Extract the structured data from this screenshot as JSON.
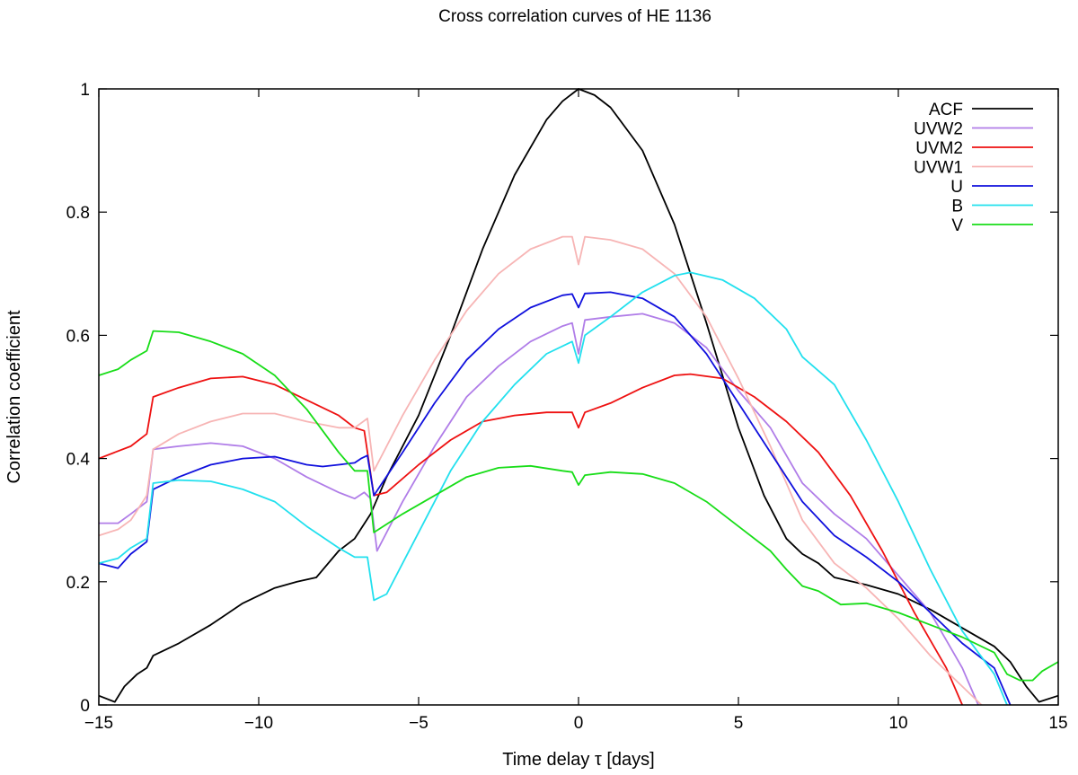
{
  "chart_data": {
    "type": "line",
    "title": "Cross correlation curves of HE 1136",
    "xlabel": "Time delay τ [days]",
    "ylabel": "Correlation coefficient",
    "xlim": [
      -15,
      15
    ],
    "ylim": [
      0,
      1
    ],
    "xticks": [
      -15,
      -10,
      -5,
      0,
      5,
      10,
      15
    ],
    "xtick_labels": [
      "−15",
      "−10",
      "−5",
      "0",
      "5",
      "10",
      "15"
    ],
    "yticks": [
      0,
      0.2,
      0.4,
      0.6,
      0.8,
      1
    ],
    "ytick_labels": [
      "0",
      "0.2",
      "0.4",
      "0.6",
      "0.8",
      "1"
    ],
    "grid": false,
    "legend_position": "top-right",
    "series": [
      {
        "name": "ACF",
        "color": "#000000",
        "points": [
          [
            -15,
            0.015
          ],
          [
            -14.5,
            0.005
          ],
          [
            -14.2,
            0.03
          ],
          [
            -13.8,
            0.05
          ],
          [
            -13.5,
            0.06
          ],
          [
            -13.3,
            0.08
          ],
          [
            -12.5,
            0.1
          ],
          [
            -11.5,
            0.13
          ],
          [
            -10.5,
            0.165
          ],
          [
            -9.5,
            0.19
          ],
          [
            -8.8,
            0.2
          ],
          [
            -8.2,
            0.207
          ],
          [
            -7.5,
            0.25
          ],
          [
            -7,
            0.27
          ],
          [
            -6.5,
            0.31
          ],
          [
            -6,
            0.37
          ],
          [
            -5,
            0.47
          ],
          [
            -4,
            0.6
          ],
          [
            -3,
            0.74
          ],
          [
            -2,
            0.86
          ],
          [
            -1,
            0.95
          ],
          [
            -0.5,
            0.98
          ],
          [
            0,
            1.0
          ],
          [
            0.5,
            0.99
          ],
          [
            1,
            0.97
          ],
          [
            2,
            0.9
          ],
          [
            3,
            0.78
          ],
          [
            4,
            0.62
          ],
          [
            5,
            0.45
          ],
          [
            5.8,
            0.34
          ],
          [
            6.5,
            0.27
          ],
          [
            7,
            0.245
          ],
          [
            7.5,
            0.23
          ],
          [
            8,
            0.207
          ],
          [
            9,
            0.195
          ],
          [
            10,
            0.18
          ],
          [
            11,
            0.155
          ],
          [
            12,
            0.125
          ],
          [
            13,
            0.095
          ],
          [
            13.5,
            0.07
          ],
          [
            14,
            0.03
          ],
          [
            14.4,
            0.005
          ],
          [
            15,
            0.015
          ]
        ]
      },
      {
        "name": "UVW2",
        "color": "#b07de8",
        "points": [
          [
            -15,
            0.295
          ],
          [
            -14.4,
            0.295
          ],
          [
            -14,
            0.31
          ],
          [
            -13.5,
            0.33
          ],
          [
            -13.3,
            0.415
          ],
          [
            -12.5,
            0.42
          ],
          [
            -11.5,
            0.425
          ],
          [
            -10.5,
            0.42
          ],
          [
            -9.5,
            0.4
          ],
          [
            -8.5,
            0.37
          ],
          [
            -7.5,
            0.345
          ],
          [
            -7,
            0.335
          ],
          [
            -6.7,
            0.345
          ],
          [
            -6.5,
            0.335
          ],
          [
            -6.3,
            0.25
          ],
          [
            -5.5,
            0.33
          ],
          [
            -4.5,
            0.42
          ],
          [
            -3.5,
            0.5
          ],
          [
            -2.5,
            0.55
          ],
          [
            -1.5,
            0.59
          ],
          [
            -0.5,
            0.615
          ],
          [
            -0.2,
            0.62
          ],
          [
            0,
            0.57
          ],
          [
            0.2,
            0.625
          ],
          [
            1,
            0.63
          ],
          [
            2,
            0.635
          ],
          [
            3,
            0.62
          ],
          [
            4,
            0.58
          ],
          [
            5,
            0.51
          ],
          [
            6,
            0.45
          ],
          [
            7,
            0.36
          ],
          [
            8,
            0.31
          ],
          [
            9,
            0.27
          ],
          [
            10,
            0.21
          ],
          [
            11,
            0.15
          ],
          [
            12,
            0.06
          ],
          [
            12.5,
            0.0
          ]
        ]
      },
      {
        "name": "UVM2",
        "color": "#ee1111",
        "points": [
          [
            -15,
            0.4
          ],
          [
            -14.5,
            0.41
          ],
          [
            -14,
            0.42
          ],
          [
            -13.5,
            0.44
          ],
          [
            -13.3,
            0.5
          ],
          [
            -12.5,
            0.515
          ],
          [
            -11.5,
            0.53
          ],
          [
            -10.5,
            0.533
          ],
          [
            -9.5,
            0.52
          ],
          [
            -8.5,
            0.495
          ],
          [
            -7.5,
            0.47
          ],
          [
            -7,
            0.45
          ],
          [
            -6.7,
            0.445
          ],
          [
            -6.4,
            0.34
          ],
          [
            -6,
            0.345
          ],
          [
            -5,
            0.39
          ],
          [
            -4,
            0.43
          ],
          [
            -3,
            0.46
          ],
          [
            -2,
            0.47
          ],
          [
            -1,
            0.475
          ],
          [
            -0.2,
            0.475
          ],
          [
            0,
            0.45
          ],
          [
            0.2,
            0.475
          ],
          [
            1,
            0.49
          ],
          [
            2,
            0.515
          ],
          [
            3,
            0.535
          ],
          [
            3.5,
            0.537
          ],
          [
            4.5,
            0.53
          ],
          [
            5.5,
            0.5
          ],
          [
            6.5,
            0.46
          ],
          [
            7.5,
            0.41
          ],
          [
            8.5,
            0.34
          ],
          [
            9.5,
            0.25
          ],
          [
            10.5,
            0.15
          ],
          [
            11.5,
            0.06
          ],
          [
            12,
            0.0
          ]
        ]
      },
      {
        "name": "UVW1",
        "color": "#f7b5b5",
        "points": [
          [
            -15,
            0.275
          ],
          [
            -14.4,
            0.285
          ],
          [
            -14,
            0.3
          ],
          [
            -13.5,
            0.34
          ],
          [
            -13.3,
            0.415
          ],
          [
            -12.5,
            0.44
          ],
          [
            -11.5,
            0.46
          ],
          [
            -10.5,
            0.473
          ],
          [
            -9.5,
            0.473
          ],
          [
            -8.5,
            0.46
          ],
          [
            -7.5,
            0.45
          ],
          [
            -7,
            0.45
          ],
          [
            -6.6,
            0.465
          ],
          [
            -6.4,
            0.38
          ],
          [
            -5.5,
            0.47
          ],
          [
            -4.5,
            0.56
          ],
          [
            -3.5,
            0.64
          ],
          [
            -2.5,
            0.7
          ],
          [
            -1.5,
            0.74
          ],
          [
            -0.5,
            0.76
          ],
          [
            -0.2,
            0.76
          ],
          [
            0,
            0.715
          ],
          [
            0.2,
            0.76
          ],
          [
            1,
            0.755
          ],
          [
            2,
            0.74
          ],
          [
            3,
            0.7
          ],
          [
            4,
            0.63
          ],
          [
            5,
            0.53
          ],
          [
            6,
            0.42
          ],
          [
            7,
            0.3
          ],
          [
            8,
            0.23
          ],
          [
            9,
            0.19
          ],
          [
            10,
            0.14
          ],
          [
            11,
            0.08
          ],
          [
            12,
            0.03
          ],
          [
            12.6,
            0.0
          ]
        ]
      },
      {
        "name": "U",
        "color": "#1010dd",
        "points": [
          [
            -15,
            0.23
          ],
          [
            -14.4,
            0.222
          ],
          [
            -14,
            0.245
          ],
          [
            -13.5,
            0.265
          ],
          [
            -13.3,
            0.35
          ],
          [
            -12.5,
            0.37
          ],
          [
            -11.5,
            0.39
          ],
          [
            -10.5,
            0.4
          ],
          [
            -9.5,
            0.403
          ],
          [
            -8.5,
            0.39
          ],
          [
            -8,
            0.387
          ],
          [
            -7.5,
            0.39
          ],
          [
            -7,
            0.393
          ],
          [
            -6.8,
            0.4
          ],
          [
            -6.6,
            0.405
          ],
          [
            -6.4,
            0.34
          ],
          [
            -5.5,
            0.41
          ],
          [
            -4.5,
            0.49
          ],
          [
            -3.5,
            0.56
          ],
          [
            -2.5,
            0.61
          ],
          [
            -1.5,
            0.645
          ],
          [
            -0.5,
            0.665
          ],
          [
            -0.2,
            0.667
          ],
          [
            0,
            0.645
          ],
          [
            0.2,
            0.668
          ],
          [
            1,
            0.67
          ],
          [
            2,
            0.66
          ],
          [
            3,
            0.63
          ],
          [
            4,
            0.57
          ],
          [
            5,
            0.49
          ],
          [
            6,
            0.41
          ],
          [
            7,
            0.33
          ],
          [
            8,
            0.275
          ],
          [
            9,
            0.24
          ],
          [
            10,
            0.2
          ],
          [
            11,
            0.15
          ],
          [
            12,
            0.1
          ],
          [
            13,
            0.06
          ],
          [
            13.5,
            0.0
          ]
        ]
      },
      {
        "name": "B",
        "color": "#22e0ee",
        "points": [
          [
            -15,
            0.23
          ],
          [
            -14.4,
            0.238
          ],
          [
            -14,
            0.255
          ],
          [
            -13.5,
            0.27
          ],
          [
            -13.3,
            0.36
          ],
          [
            -12.5,
            0.365
          ],
          [
            -11.5,
            0.363
          ],
          [
            -10.5,
            0.35
          ],
          [
            -9.5,
            0.33
          ],
          [
            -8.5,
            0.29
          ],
          [
            -7.5,
            0.255
          ],
          [
            -7,
            0.24
          ],
          [
            -6.6,
            0.24
          ],
          [
            -6.4,
            0.17
          ],
          [
            -6,
            0.18
          ],
          [
            -5,
            0.28
          ],
          [
            -4,
            0.38
          ],
          [
            -3,
            0.46
          ],
          [
            -2,
            0.52
          ],
          [
            -1,
            0.57
          ],
          [
            -0.2,
            0.59
          ],
          [
            0,
            0.555
          ],
          [
            0.2,
            0.6
          ],
          [
            1,
            0.63
          ],
          [
            2,
            0.67
          ],
          [
            3,
            0.697
          ],
          [
            3.5,
            0.702
          ],
          [
            4.5,
            0.69
          ],
          [
            5.5,
            0.66
          ],
          [
            6.5,
            0.61
          ],
          [
            7,
            0.565
          ],
          [
            8,
            0.52
          ],
          [
            9,
            0.43
          ],
          [
            10,
            0.33
          ],
          [
            11,
            0.22
          ],
          [
            12,
            0.12
          ],
          [
            13,
            0.05
          ],
          [
            13.4,
            0.0
          ]
        ]
      },
      {
        "name": "V",
        "color": "#18dd18",
        "points": [
          [
            -15,
            0.535
          ],
          [
            -14.4,
            0.545
          ],
          [
            -14,
            0.56
          ],
          [
            -13.5,
            0.575
          ],
          [
            -13.3,
            0.607
          ],
          [
            -12.5,
            0.605
          ],
          [
            -11.5,
            0.59
          ],
          [
            -10.5,
            0.57
          ],
          [
            -9.5,
            0.535
          ],
          [
            -8.5,
            0.48
          ],
          [
            -7.5,
            0.41
          ],
          [
            -7,
            0.38
          ],
          [
            -6.6,
            0.38
          ],
          [
            -6.4,
            0.28
          ],
          [
            -5.5,
            0.31
          ],
          [
            -4.5,
            0.34
          ],
          [
            -3.5,
            0.37
          ],
          [
            -2.5,
            0.385
          ],
          [
            -1.5,
            0.388
          ],
          [
            -0.5,
            0.38
          ],
          [
            -0.2,
            0.378
          ],
          [
            0,
            0.357
          ],
          [
            0.2,
            0.373
          ],
          [
            1,
            0.378
          ],
          [
            2,
            0.375
          ],
          [
            3,
            0.36
          ],
          [
            4,
            0.33
          ],
          [
            5,
            0.29
          ],
          [
            6,
            0.25
          ],
          [
            6.5,
            0.22
          ],
          [
            7,
            0.193
          ],
          [
            7.5,
            0.185
          ],
          [
            8.2,
            0.163
          ],
          [
            9,
            0.165
          ],
          [
            10,
            0.15
          ],
          [
            11,
            0.13
          ],
          [
            12,
            0.11
          ],
          [
            13,
            0.085
          ],
          [
            13.4,
            0.05
          ],
          [
            13.8,
            0.04
          ],
          [
            14.2,
            0.04
          ],
          [
            14.5,
            0.055
          ],
          [
            15,
            0.07
          ]
        ]
      }
    ]
  }
}
